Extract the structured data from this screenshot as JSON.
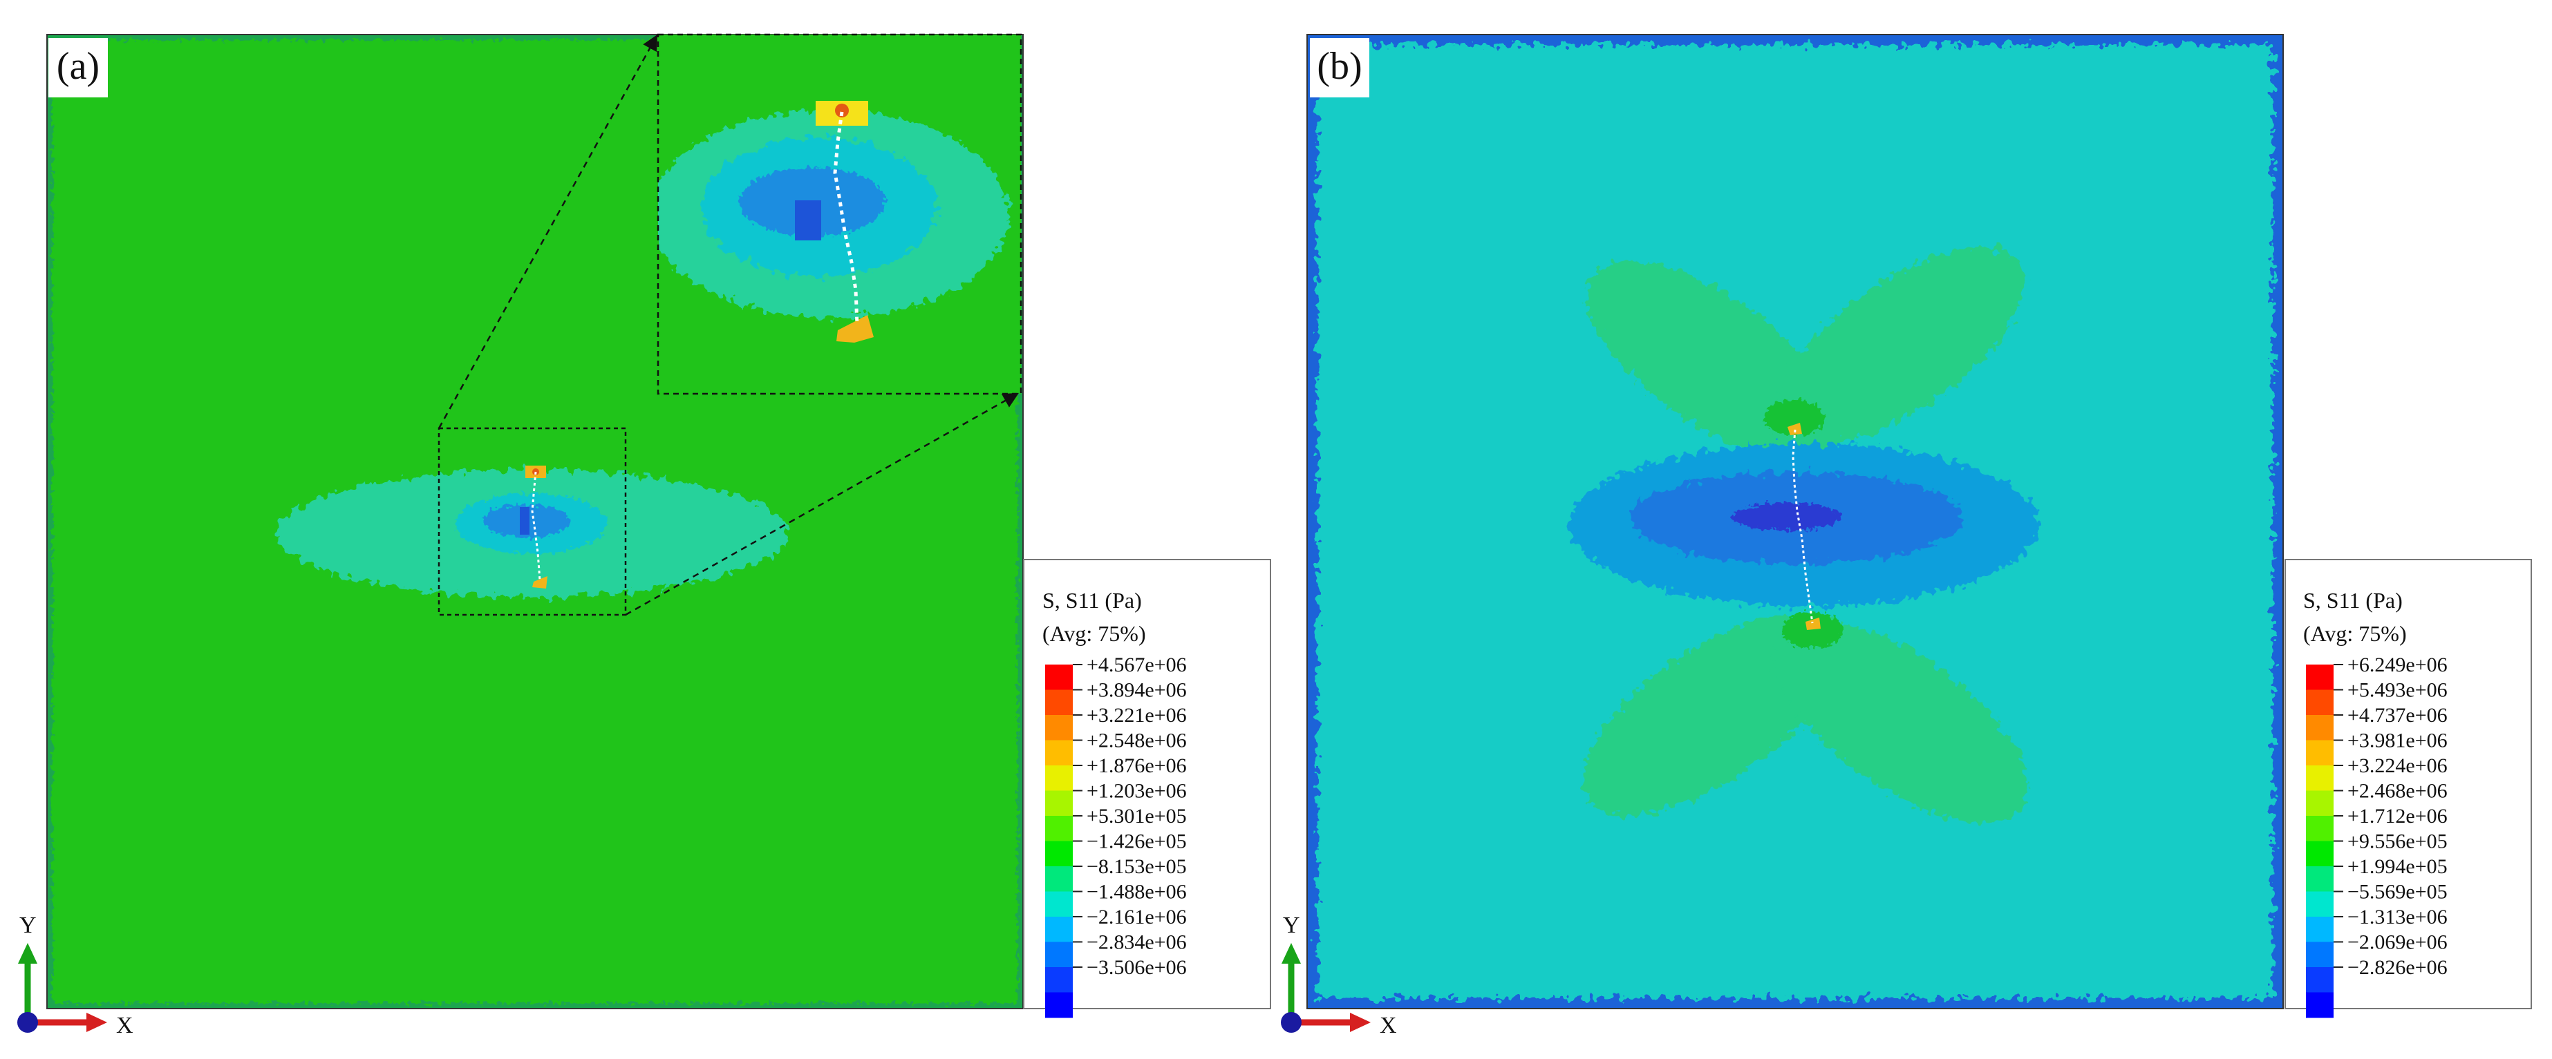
{
  "panels": [
    {
      "label": "(a)",
      "colors": {
        "field": "#20c41a",
        "shell": "#1aa64f",
        "cmp1": "#27d29b",
        "cmp2": "#10c6d0",
        "cmp3": "#1a8de0",
        "cmp4": "#1d54d8",
        "tip1": "#f2b41b",
        "tip2": "#e45a14",
        "tip3": "#f5e21a"
      },
      "legend": {
        "title": "S, S11 (Pa)",
        "avg": "(Avg: 75%)",
        "values": [
          "+4.567e+06",
          "+3.894e+06",
          "+3.221e+06",
          "+2.548e+06",
          "+1.876e+06",
          "+1.203e+06",
          "+5.301e+05",
          "−1.426e+05",
          "−8.153e+05",
          "−1.488e+06",
          "−2.161e+06",
          "−2.834e+06",
          "−3.506e+06"
        ]
      },
      "axes": {
        "y": "Y",
        "x": "X"
      }
    },
    {
      "label": "(b)",
      "colors": {
        "field": "#16ccc6",
        "edge": "#1f63d8",
        "lobe": "#25cf86",
        "lobe2": "#16c236",
        "cmp1": "#109fdc",
        "cmp2": "#1b79df",
        "cmp3": "#2b3ad2"
      },
      "legend": {
        "title": "S, S11 (Pa)",
        "avg": "(Avg: 75%)",
        "values": [
          "+6.249e+06",
          "+5.493e+06",
          "+4.737e+06",
          "+3.981e+06",
          "+3.224e+06",
          "+2.468e+06",
          "+1.712e+06",
          "+9.556e+05",
          "+1.994e+05",
          "−5.569e+05",
          "−1.313e+06",
          "−2.069e+06",
          "−2.826e+06"
        ]
      },
      "axes": {
        "y": "Y",
        "x": "X"
      }
    }
  ],
  "legend_colors": [
    "#ff0000",
    "#ff4a00",
    "#ff8a00",
    "#ffbd00",
    "#e8f000",
    "#a8f500",
    "#50f000",
    "#00e800",
    "#00e87c",
    "#00e6cf",
    "#00b8ff",
    "#0078ff",
    "#0a3cff",
    "#0000ff"
  ]
}
